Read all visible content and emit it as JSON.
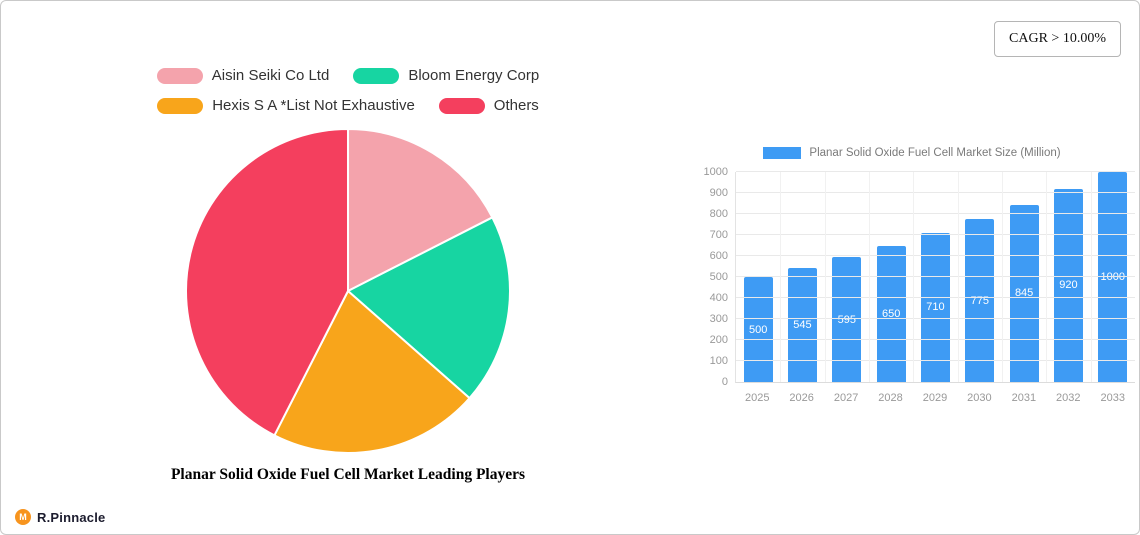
{
  "cagr": {
    "label": "CAGR > 10.00%"
  },
  "brand": {
    "name": "R.Pinnacle",
    "icon_letter": "M",
    "icon_color": "#f7941e"
  },
  "chart_data": [
    {
      "type": "pie",
      "title": "Planar Solid Oxide Fuel Cell Market Leading Players",
      "labels": [
        "Aisin Seiki Co Ltd",
        "Bloom Energy Corp",
        "Hexis S A *List Not Exhaustive",
        "Others"
      ],
      "values": [
        17.5,
        19,
        21,
        42.5
      ],
      "colors": [
        "#f4a3ac",
        "#17d5a2",
        "#f8a51b",
        "#f43f5e"
      ],
      "start_angle_deg": 0,
      "direction": "clockwise",
      "legend_position": "top"
    },
    {
      "type": "bar",
      "legend_label": "Planar Solid Oxide Fuel Cell Market Size (Million)",
      "categories": [
        "2025",
        "2026",
        "2027",
        "2028",
        "2029",
        "2030",
        "2031",
        "2032",
        "2033"
      ],
      "values": [
        500,
        545,
        595,
        650,
        710,
        775,
        845,
        920,
        1000
      ],
      "bar_color": "#3e9bf4",
      "ylim": [
        0,
        1000
      ],
      "ytick_step": 100,
      "grid": true,
      "value_labels": "inside-white",
      "legend_position": "top"
    }
  ]
}
